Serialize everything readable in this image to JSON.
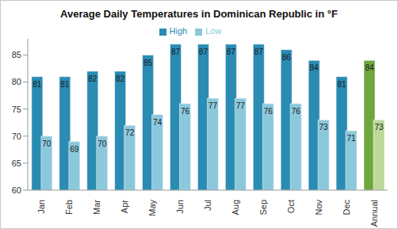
{
  "chart_data": {
    "type": "bar",
    "title": "Average Daily Temperatures in Dominican Republic in °F",
    "categories": [
      "Jan",
      "Feb",
      "Mar",
      "Apr",
      "May",
      "Jun",
      "Jul",
      "Aug",
      "Sep",
      "Oct",
      "Nov",
      "Dec",
      "Annual"
    ],
    "series": [
      {
        "name": "High",
        "color": "#2a8bb3",
        "colors": [
          "#2a8bb3",
          "#2a8bb3",
          "#2a8bb3",
          "#2a8bb3",
          "#2a8bb3",
          "#2a8bb3",
          "#2a8bb3",
          "#2a8bb3",
          "#2a8bb3",
          "#2a8bb3",
          "#2a8bb3",
          "#2a8bb3",
          "#6fa63e"
        ],
        "values": [
          81,
          81,
          82,
          82,
          85,
          87,
          87,
          87,
          87,
          86,
          84,
          81,
          84
        ]
      },
      {
        "name": "Low",
        "color": "#8cc8dc",
        "colors": [
          "#8cc8dc",
          "#8cc8dc",
          "#8cc8dc",
          "#8cc8dc",
          "#8cc8dc",
          "#8cc8dc",
          "#8cc8dc",
          "#8cc8dc",
          "#8cc8dc",
          "#8cc8dc",
          "#8cc8dc",
          "#8cc8dc",
          "#bcd99a"
        ],
        "values": [
          70,
          69,
          70,
          72,
          74,
          76,
          77,
          77,
          76,
          76,
          73,
          71,
          73
        ]
      }
    ],
    "ylim": [
      60,
      88
    ],
    "yticks": [
      60,
      65,
      70,
      75,
      80,
      85
    ],
    "grid": false,
    "legend": "top",
    "data_labels": true
  }
}
